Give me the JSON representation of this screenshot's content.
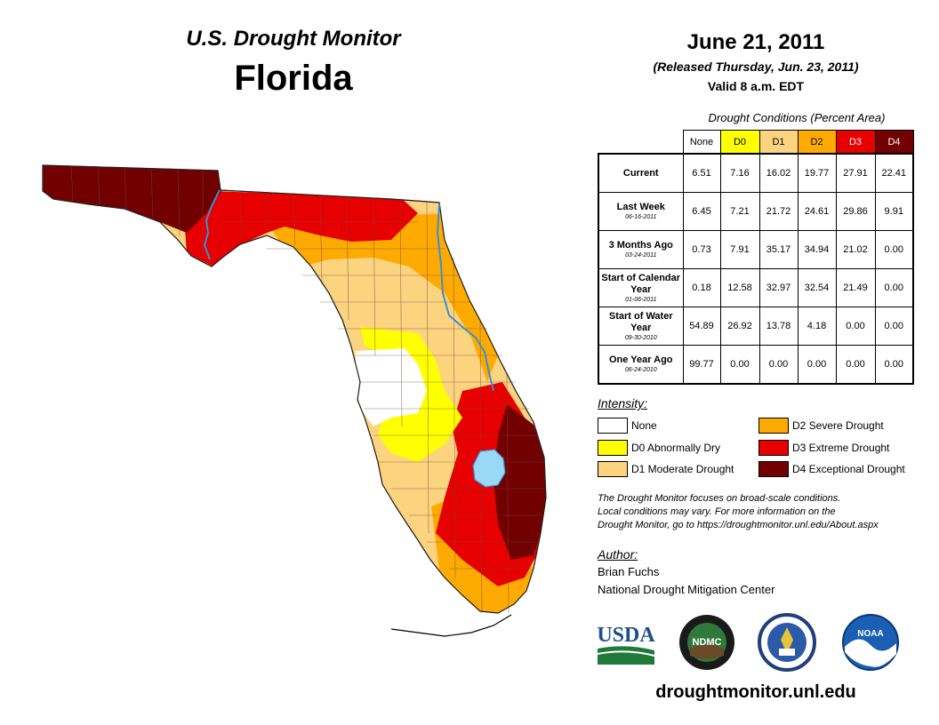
{
  "header": {
    "subtitle": "U.S. Drought Monitor",
    "state": "Florida",
    "date": "June 21, 2011",
    "released": "(Released Thursday, Jun. 23, 2011)",
    "valid": "Valid 8 a.m. EDT"
  },
  "table": {
    "caption": "Drought Conditions (Percent Area)",
    "columns": [
      "None",
      "D0",
      "D1",
      "D2",
      "D3",
      "D4"
    ],
    "column_colors": [
      "#ffffff",
      "#ffff00",
      "#fcd37f",
      "#ffaa00",
      "#e60000",
      "#730000"
    ],
    "rows": [
      {
        "label": "Current",
        "date": "",
        "values": [
          "6.51",
          "7.16",
          "16.02",
          "19.77",
          "27.91",
          "22.41"
        ]
      },
      {
        "label": "Last Week",
        "date": "06-16-2011",
        "values": [
          "6.45",
          "7.21",
          "21.72",
          "24.61",
          "29.86",
          "9.91"
        ]
      },
      {
        "label": "3 Months Ago",
        "date": "03-24-2011",
        "values": [
          "0.73",
          "7.91",
          "35.17",
          "34.94",
          "21.02",
          "0.00"
        ]
      },
      {
        "label": "Start of Calendar Year",
        "date": "01-06-2011",
        "values": [
          "0.18",
          "12.58",
          "32.97",
          "32.54",
          "21.49",
          "0.00"
        ]
      },
      {
        "label": "Start of Water Year",
        "date": "09-30-2010",
        "values": [
          "54.89",
          "26.92",
          "13.78",
          "4.18",
          "0.00",
          "0.00"
        ]
      },
      {
        "label": "One Year Ago",
        "date": "06-24-2010",
        "values": [
          "99.77",
          "0.00",
          "0.00",
          "0.00",
          "0.00",
          "0.00"
        ]
      }
    ]
  },
  "legend": {
    "title": "Intensity:",
    "items": [
      {
        "label": "None",
        "color": "#ffffff"
      },
      {
        "label": "D0 Abnormally Dry",
        "color": "#ffff00"
      },
      {
        "label": "D1 Moderate Drought",
        "color": "#fcd37f"
      },
      {
        "label": "D2 Severe Drought",
        "color": "#ffaa00"
      },
      {
        "label": "D3 Extreme Drought",
        "color": "#e60000"
      },
      {
        "label": "D4 Exceptional Drought",
        "color": "#730000"
      }
    ]
  },
  "note": {
    "line1": "The Drought Monitor focuses on broad-scale conditions.",
    "line2": "Local conditions may vary. For more information on the",
    "line3": "Drought Monitor, go to https://droughtmonitor.unl.edu/About.aspx"
  },
  "author": {
    "title": "Author:",
    "name": "Brian Fuchs",
    "org": "National Drought Mitigation Center"
  },
  "logos": {
    "usda": "USDA",
    "ndmc": "NDMC",
    "noaa": "NOAA"
  },
  "site_url": "droughtmonitor.unl.edu",
  "colors": {
    "none": "#ffffff",
    "d0": "#ffff00",
    "d1": "#fcd37f",
    "d2": "#ffaa00",
    "d3": "#e60000",
    "d4": "#730000",
    "water": "#99d9f5",
    "river": "#3a8fd6"
  }
}
